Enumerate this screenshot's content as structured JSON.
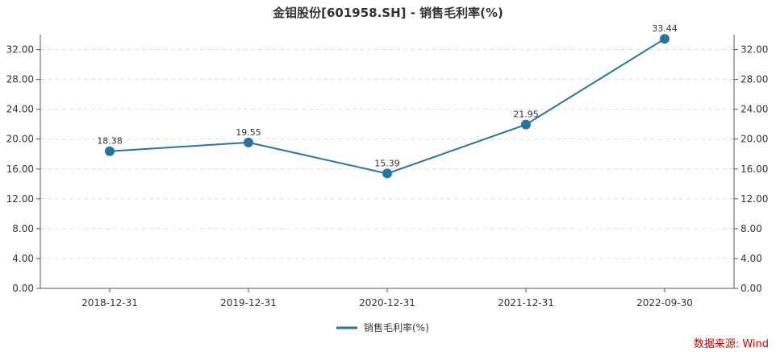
{
  "chart_data": {
    "type": "line",
    "title": "金钼股份[601958.SH] - 销售毛利率(%)",
    "categories": [
      "2018-12-31",
      "2019-12-31",
      "2020-12-31",
      "2021-12-31",
      "2022-09-30"
    ],
    "series": [
      {
        "name": "销售毛利率(%)",
        "values": [
          18.38,
          19.55,
          15.39,
          21.95,
          33.44
        ],
        "color": "#2874a0"
      }
    ],
    "data_labels": [
      "18.38",
      "19.55",
      "15.39",
      "21.95",
      "33.44"
    ],
    "ylim": [
      0,
      34
    ],
    "yticks": [
      0,
      4,
      8,
      12,
      16,
      20,
      24,
      28,
      32
    ],
    "ytick_labels": [
      "0.00",
      "4.00",
      "8.00",
      "12.00",
      "16.00",
      "20.00",
      "24.00",
      "28.00",
      "32.00"
    ],
    "grid": true,
    "grid_color": "#dddddd",
    "axis_color": "#555555",
    "legend_position": "bottom-center",
    "y_axes": "left-and-right"
  },
  "source_note": "数据来源: Wind",
  "source_color": "#cc0000"
}
